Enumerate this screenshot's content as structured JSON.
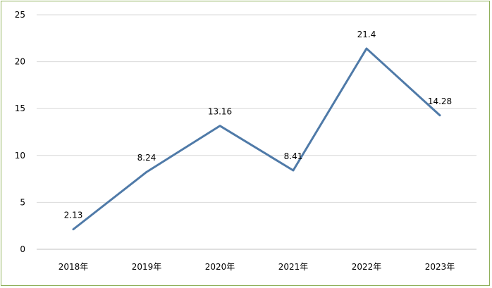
{
  "chart_data": {
    "type": "line",
    "categories": [
      "2018年",
      "2019年",
      "2020年",
      "2021年",
      "2022年",
      "2023年"
    ],
    "series": [
      {
        "values": [
          2.13,
          8.24,
          13.16,
          8.41,
          21.4,
          14.28
        ],
        "labels": [
          "2.13",
          "8.24",
          "13.16",
          "8.41",
          "21.4",
          "14.28"
        ],
        "color": "#4f7aa8"
      }
    ],
    "ylim": [
      0,
      25
    ],
    "yticks": [
      0,
      5,
      10,
      15,
      20,
      25
    ],
    "grid": true,
    "legend": "none",
    "gridline_color": "#d9d9d9",
    "frame_color": "#8fb05a"
  }
}
